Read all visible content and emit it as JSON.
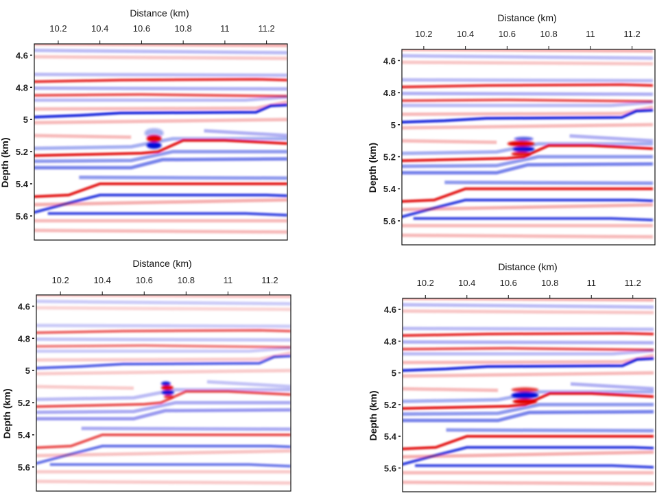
{
  "colors": {
    "positive": "#e00000",
    "negative": "#0010d8",
    "background": "#ffffff"
  },
  "reflectors": [
    {
      "polarity": 1,
      "amp": 0.35,
      "pts": [
        [
          10.08,
          4.53
        ],
        [
          11.3,
          4.54
        ]
      ]
    },
    {
      "polarity": -1,
      "amp": 0.3,
      "pts": [
        [
          10.08,
          4.57
        ],
        [
          11.3,
          4.585
        ]
      ]
    },
    {
      "polarity": 1,
      "amp": 0.25,
      "pts": [
        [
          10.08,
          4.61
        ],
        [
          11.3,
          4.62
        ]
      ]
    },
    {
      "polarity": -1,
      "amp": 0.3,
      "pts": [
        [
          10.08,
          4.72
        ],
        [
          11.3,
          4.725
        ]
      ]
    },
    {
      "polarity": 1,
      "amp": 0.9,
      "pts": [
        [
          10.08,
          4.765
        ],
        [
          10.5,
          4.755
        ],
        [
          11.15,
          4.75
        ],
        [
          11.3,
          4.755
        ]
      ]
    },
    {
      "polarity": -1,
      "amp": 0.35,
      "pts": [
        [
          10.08,
          4.805
        ],
        [
          11.3,
          4.81
        ]
      ]
    },
    {
      "polarity": 1,
      "amp": 0.75,
      "pts": [
        [
          10.08,
          4.85
        ],
        [
          10.6,
          4.845
        ],
        [
          11.3,
          4.855
        ]
      ]
    },
    {
      "polarity": -1,
      "amp": 0.3,
      "pts": [
        [
          10.08,
          4.88
        ],
        [
          11.1,
          4.88
        ],
        [
          11.3,
          4.86
        ]
      ]
    },
    {
      "polarity": 1,
      "amp": 0.3,
      "pts": [
        [
          10.08,
          4.935
        ],
        [
          11.15,
          4.93
        ],
        [
          11.3,
          4.89
        ]
      ]
    },
    {
      "polarity": -1,
      "amp": 1.0,
      "pts": [
        [
          10.08,
          4.985
        ],
        [
          10.3,
          4.975
        ],
        [
          10.5,
          4.96
        ],
        [
          11.15,
          4.955
        ],
        [
          11.22,
          4.915
        ],
        [
          11.3,
          4.91
        ]
      ]
    },
    {
      "polarity": 1,
      "amp": 0.3,
      "pts": [
        [
          10.08,
          5.02
        ],
        [
          11.3,
          5.0
        ]
      ]
    },
    {
      "polarity": -1,
      "amp": 0.35,
      "pts": [
        [
          10.9,
          5.07
        ],
        [
          11.3,
          5.1
        ]
      ]
    },
    {
      "polarity": 1,
      "amp": 0.3,
      "pts": [
        [
          10.08,
          5.1
        ],
        [
          10.55,
          5.11
        ]
      ]
    },
    {
      "polarity": -1,
      "amp": 0.4,
      "pts": [
        [
          10.08,
          5.18
        ],
        [
          10.55,
          5.17
        ],
        [
          10.75,
          5.12
        ],
        [
          11.3,
          5.12
        ]
      ]
    },
    {
      "polarity": 1,
      "amp": 1.0,
      "pts": [
        [
          10.08,
          5.225
        ],
        [
          10.6,
          5.21
        ],
        [
          10.68,
          5.2
        ],
        [
          10.8,
          5.13
        ],
        [
          11.0,
          5.13
        ],
        [
          11.3,
          5.15
        ]
      ]
    },
    {
      "polarity": -1,
      "amp": 0.5,
      "pts": [
        [
          10.08,
          5.26
        ],
        [
          10.55,
          5.255
        ],
        [
          10.75,
          5.2
        ],
        [
          11.3,
          5.2
        ]
      ]
    },
    {
      "polarity": -1,
      "amp": 0.6,
      "pts": [
        [
          10.08,
          5.3
        ],
        [
          10.55,
          5.3
        ],
        [
          10.7,
          5.25
        ],
        [
          11.3,
          5.245
        ]
      ]
    },
    {
      "polarity": -1,
      "amp": 0.5,
      "pts": [
        [
          10.3,
          5.36
        ],
        [
          11.3,
          5.365
        ]
      ]
    },
    {
      "polarity": 1,
      "amp": 1.0,
      "pts": [
        [
          10.08,
          5.48
        ],
        [
          10.25,
          5.47
        ],
        [
          10.4,
          5.4
        ],
        [
          11.3,
          5.4
        ]
      ]
    },
    {
      "polarity": -1,
      "amp": 0.9,
      "pts": [
        [
          10.08,
          5.58
        ],
        [
          10.25,
          5.52
        ],
        [
          10.4,
          5.47
        ],
        [
          11.2,
          5.47
        ],
        [
          11.3,
          5.475
        ]
      ]
    },
    {
      "polarity": 1,
      "amp": 0.35,
      "pts": [
        [
          10.08,
          5.53
        ],
        [
          11.3,
          5.5
        ]
      ]
    },
    {
      "polarity": -1,
      "amp": 0.85,
      "pts": [
        [
          10.15,
          5.585
        ],
        [
          11.1,
          5.585
        ],
        [
          11.3,
          5.595
        ]
      ]
    },
    {
      "polarity": 1,
      "amp": 0.3,
      "pts": [
        [
          10.08,
          5.63
        ],
        [
          11.3,
          5.63
        ]
      ]
    },
    {
      "polarity": 1,
      "amp": 0.3,
      "pts": [
        [
          10.08,
          5.69
        ],
        [
          11.3,
          5.7
        ]
      ]
    }
  ],
  "chart_data": [
    {
      "type": "heatmap",
      "panel": "top-left",
      "xlabel": "Distance (km)",
      "ylabel": "Depth (km)",
      "xticks": [
        "10.2",
        "10.4",
        "10.6",
        "10.8",
        "11",
        "11.2"
      ],
      "yticks": [
        "4.6",
        "4.8",
        "5",
        "5.2",
        "5.4",
        "5.6"
      ],
      "xlim": [
        10.085,
        11.3
      ],
      "ylim": [
        4.53,
        5.75
      ],
      "colormap": "blue-white-red",
      "anomaly": {
        "x": 10.66,
        "depth": 5.14,
        "shape": "compact circle, red over blue"
      }
    },
    {
      "type": "heatmap",
      "panel": "top-right",
      "xlabel": "Distance (km)",
      "ylabel": "Depth (km)",
      "xticks": [
        "10.2",
        "10.4",
        "10.6",
        "10.8",
        "11",
        "11.2"
      ],
      "yticks": [
        "4.6",
        "4.8",
        "5",
        "5.2",
        "5.4",
        "5.6"
      ],
      "xlim": [
        10.095,
        11.31
      ],
      "ylim": [
        4.53,
        5.75
      ],
      "colormap": "blue-white-red",
      "anomaly": {
        "x": 10.68,
        "depth": 5.14,
        "shape": "smeared, alternating red/blue"
      }
    },
    {
      "type": "heatmap",
      "panel": "bottom-left",
      "xlabel": "Distance (km)",
      "ylabel": "Depth (km)",
      "xticks": [
        "10.2",
        "10.4",
        "10.6",
        "10.8",
        "11",
        "11.2"
      ],
      "yticks": [
        "4.6",
        "4.8",
        "5",
        "5.2",
        "5.4",
        "5.6"
      ],
      "xlim": [
        10.085,
        11.3
      ],
      "ylim": [
        4.53,
        5.75
      ],
      "colormap": "blue-white-red",
      "anomaly": {
        "x": 10.71,
        "depth": 5.12,
        "shape": "small, blue-red-blue"
      }
    },
    {
      "type": "heatmap",
      "panel": "bottom-right",
      "xlabel": "Distance (km)",
      "ylabel": "Depth (km)",
      "xticks": [
        "10.2",
        "10.4",
        "10.6",
        "10.8",
        "11",
        "11.2"
      ],
      "yticks": [
        "4.6",
        "4.8",
        "5",
        "5.2",
        "5.4",
        "5.6"
      ],
      "xlim": [
        10.09,
        11.31
      ],
      "ylim": [
        4.53,
        5.75
      ],
      "colormap": "blue-white-red",
      "anomaly": {
        "x": 10.68,
        "depth": 5.15,
        "shape": "elongated, red over blue over red"
      }
    }
  ]
}
